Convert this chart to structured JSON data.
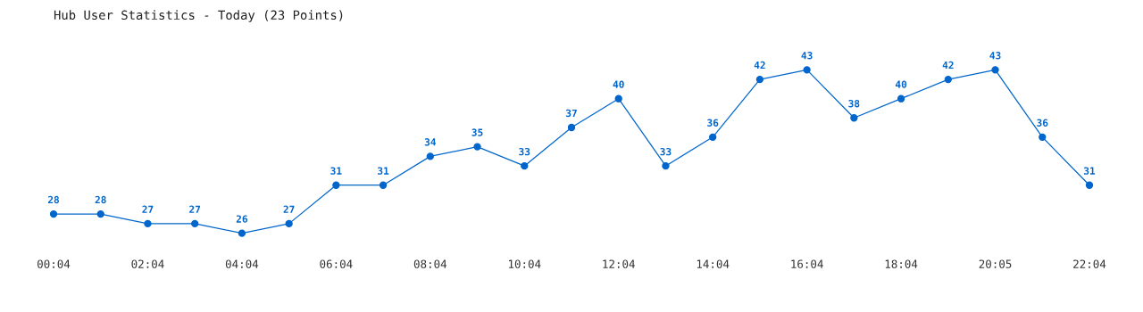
{
  "chart_data": {
    "type": "line",
    "title": "Hub User Statistics - Today (23 Points)",
    "categories": [
      "00:04",
      null,
      "02:04",
      null,
      "04:04",
      null,
      "06:04",
      null,
      "08:04",
      null,
      "10:04",
      null,
      "12:04",
      null,
      "14:04",
      null,
      "16:04",
      null,
      "18:04",
      null,
      "20:05",
      null,
      "22:04"
    ],
    "series": [
      {
        "color": "#0066cc",
        "values": [
          28,
          28,
          27,
          27,
          26,
          27,
          31,
          31,
          34,
          35,
          33,
          37,
          40,
          33,
          36,
          42,
          43,
          38,
          40,
          42,
          43,
          36,
          31
        ]
      }
    ],
    "data_labels": true,
    "marker": "circle",
    "grid": false,
    "legend": false,
    "tick_labels": "x"
  }
}
